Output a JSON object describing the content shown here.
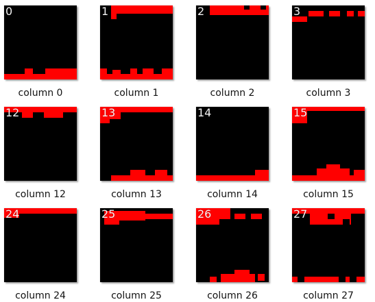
{
  "thumbnails": [
    {
      "number": "0",
      "caption": "column 0"
    },
    {
      "number": "1",
      "caption": "column 1"
    },
    {
      "number": "2",
      "caption": "column 2"
    },
    {
      "number": "3",
      "caption": "column 3"
    },
    {
      "number": "12",
      "caption": "column 12"
    },
    {
      "number": "13",
      "caption": "column 13"
    },
    {
      "number": "14",
      "caption": "column 14"
    },
    {
      "number": "15",
      "caption": "column 15"
    },
    {
      "number": "24",
      "caption": "column 24"
    },
    {
      "number": "25",
      "caption": "column 25"
    },
    {
      "number": "26",
      "caption": "column 26"
    },
    {
      "number": "27",
      "caption": "column 27"
    }
  ],
  "colors": {
    "pixel": "#ff0000",
    "background": "#000000"
  }
}
